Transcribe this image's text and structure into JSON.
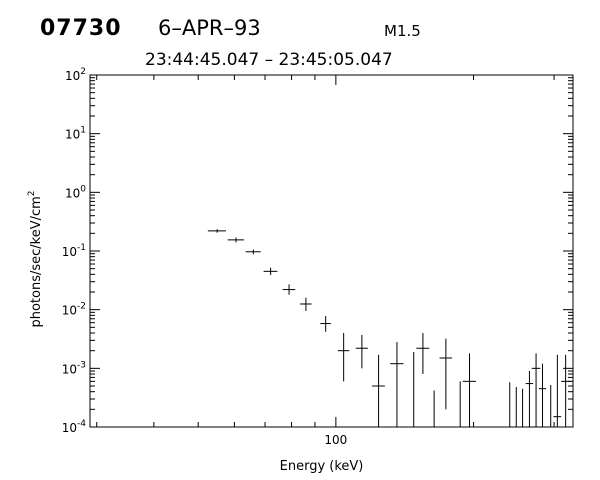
{
  "header": {
    "event_id": "07730",
    "date": "6–APR–93",
    "goes_class": "M1.5",
    "time_range": "23:44:45.047 – 23:45:05.047"
  },
  "chart_data": {
    "type": "scatter",
    "title": "",
    "xlabel": "Energy (keV)",
    "ylabel": "photons/sec/keV/cm",
    "ylabel_superscript": "2",
    "x_scale": "log",
    "y_scale": "log",
    "xlim": [
      29,
      330
    ],
    "ylim": [
      0.0001,
      100
    ],
    "x_tick_labels": [
      "100"
    ],
    "y_tick_labels": [
      {
        "base": "10",
        "exp": "-4"
      },
      {
        "base": "10",
        "exp": "-3"
      },
      {
        "base": "10",
        "exp": "-2"
      },
      {
        "base": "10",
        "exp": "-1"
      },
      {
        "base": "10",
        "exp": "0"
      },
      {
        "base": "10",
        "exp": "1"
      },
      {
        "base": "10",
        "exp": "2"
      }
    ],
    "grid": false,
    "legend": "none",
    "series": [
      {
        "points": [
          {
            "x": 55,
            "y": 0.22,
            "xerr": [
              52.5,
              57.5
            ],
            "yerr": [
              0.205,
              0.235
            ]
          },
          {
            "x": 60.5,
            "y": 0.155,
            "xerr": [
              58,
              63
            ],
            "yerr": [
              0.14,
              0.17
            ]
          },
          {
            "x": 66,
            "y": 0.097,
            "xerr": [
              63.5,
              68.5
            ],
            "yerr": [
              0.088,
              0.106
            ]
          },
          {
            "x": 72,
            "y": 0.045,
            "xerr": [
              69.5,
              74.5
            ],
            "yerr": [
              0.039,
              0.052
            ]
          },
          {
            "x": 79,
            "y": 0.022,
            "xerr": [
              76.5,
              81.5
            ],
            "yerr": [
              0.018,
              0.027
            ]
          },
          {
            "x": 86,
            "y": 0.0125,
            "xerr": [
              83.5,
              88.5
            ],
            "yerr": [
              0.0095,
              0.016
            ]
          },
          {
            "x": 95,
            "y": 0.0058,
            "xerr": [
              92.5,
              97.5
            ],
            "yerr": [
              0.0042,
              0.0078
            ]
          },
          {
            "x": 104,
            "y": 0.002,
            "xerr": [
              101,
              107
            ],
            "yerr": [
              0.0006,
              0.004
            ]
          },
          {
            "x": 114,
            "y": 0.0022,
            "xerr": [
              110.5,
              117.5
            ],
            "yerr": [
              0.001,
              0.0037
            ]
          },
          {
            "x": 124,
            "y": 0.0005,
            "xerr": [
              120,
              128
            ],
            "yerr": [
              0.0001,
              0.0017
            ]
          },
          {
            "x": 136,
            "y": 0.0012,
            "xerr": [
              131.5,
              140.5
            ],
            "yerr": [
              0.0001,
              0.0028
            ]
          },
          {
            "x": 148,
            "y": null,
            "xerr": null,
            "yerr": [
              0.0001,
              0.0019
            ]
          },
          {
            "x": 155,
            "y": 0.0022,
            "xerr": [
              150,
              160
            ],
            "yerr": [
              0.0008,
              0.004
            ]
          },
          {
            "x": 164,
            "y": null,
            "xerr": null,
            "yerr": [
              0.0001,
              0.00042
            ]
          },
          {
            "x": 174,
            "y": 0.0015,
            "xerr": [
              168.5,
              179.5
            ],
            "yerr": [
              0.0002,
              0.0032
            ]
          },
          {
            "x": 187,
            "y": null,
            "xerr": null,
            "yerr": [
              0.0001,
              0.0006
            ]
          },
          {
            "x": 196,
            "y": 0.0006,
            "xerr": [
              189.5,
              202.5
            ],
            "yerr": [
              0.0001,
              0.0018
            ]
          },
          {
            "x": 240,
            "y": null,
            "xerr": null,
            "yerr": [
              0.0001,
              0.00058
            ]
          },
          {
            "x": 248,
            "y": null,
            "xerr": null,
            "yerr": [
              0.0001,
              0.00048
            ]
          },
          {
            "x": 256,
            "y": null,
            "xerr": null,
            "yerr": [
              0.0001,
              0.00045
            ]
          },
          {
            "x": 265,
            "y": 0.00055,
            "xerr": [
              260,
              270
            ],
            "yerr": [
              0.0001,
              0.0009
            ]
          },
          {
            "x": 274,
            "y": 0.001,
            "xerr": [
              268,
              280
            ],
            "yerr": [
              0.0001,
              0.0018
            ]
          },
          {
            "x": 283,
            "y": 0.00045,
            "xerr": [
              278,
              288
            ],
            "yerr": [
              0.0001,
              0.0012
            ]
          },
          {
            "x": 295,
            "y": null,
            "xerr": null,
            "yerr": [
              0.0001,
              0.00052
            ]
          },
          {
            "x": 305,
            "y": 0.00015,
            "xerr": [
              299,
              311
            ],
            "yerr": [
              0.0001,
              0.0017
            ]
          },
          {
            "x": 318,
            "y": 0.0006,
            "xerr": [
              311,
              325
            ],
            "yerr": [
              0.0001,
              0.0017
            ]
          }
        ]
      }
    ]
  }
}
